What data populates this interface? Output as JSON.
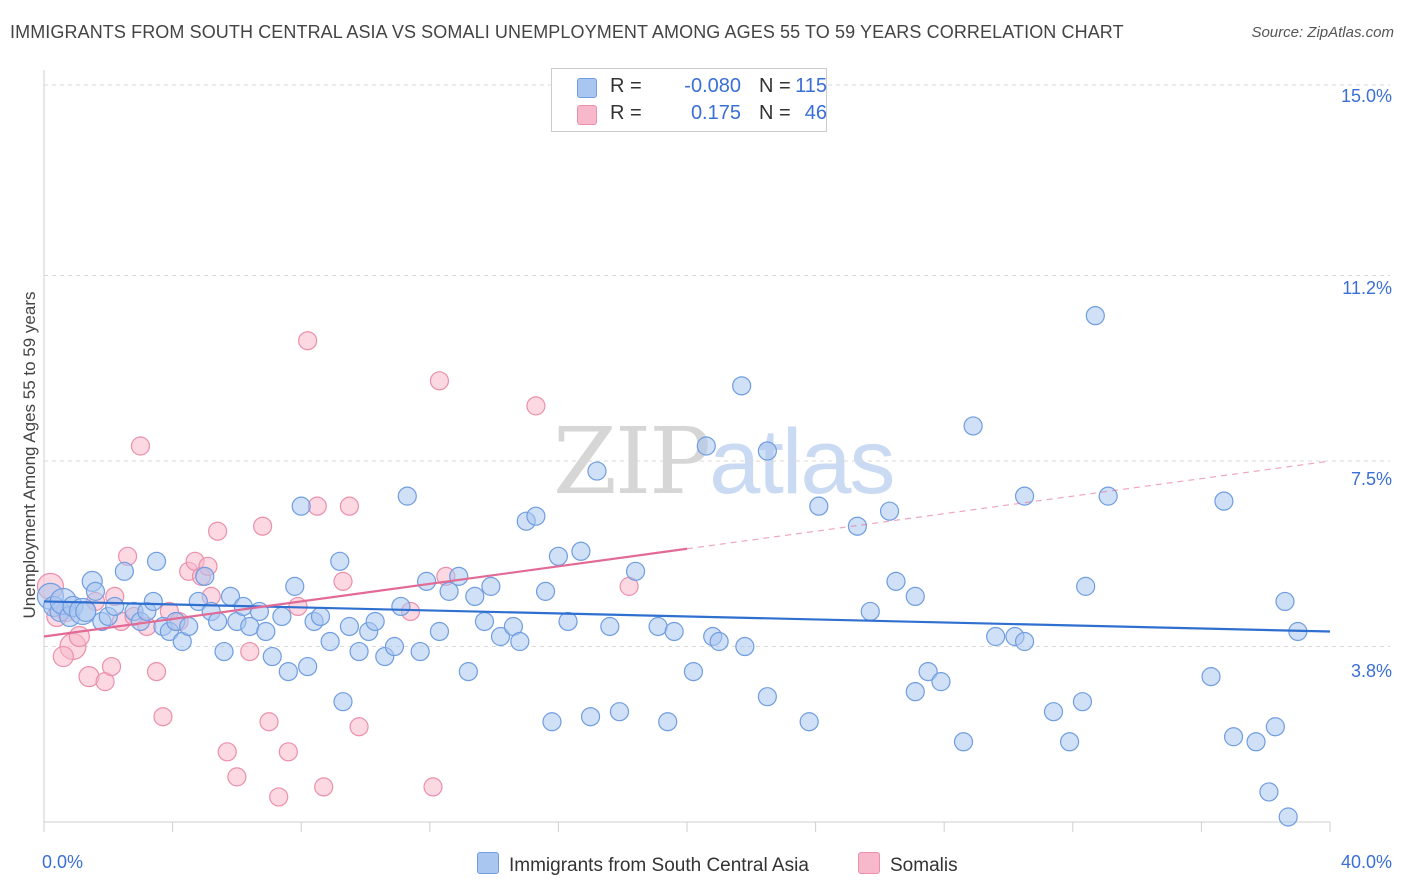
{
  "title": "IMMIGRANTS FROM SOUTH CENTRAL ASIA VS SOMALI UNEMPLOYMENT AMONG AGES 55 TO 59 YEARS CORRELATION CHART",
  "source": "Source: ZipAtlas.com",
  "watermark": {
    "zip": "ZIP",
    "atlas": "atlas"
  },
  "legend": {
    "rows": [
      {
        "r_label": "R =",
        "r_value": "-0.080",
        "n_label": "N =",
        "n_value": "115",
        "color": "#a9c6f0"
      },
      {
        "r_label": "R =",
        "r_value": "0.175",
        "n_label": "N =",
        "n_value": "46",
        "color": "#f7b8cb"
      }
    ]
  },
  "bottom_legend": [
    {
      "label": "Immigrants from South Central Asia",
      "color": "#a9c6f0"
    },
    {
      "label": "Somalis",
      "color": "#f7b8cb"
    }
  ],
  "axes": {
    "ylabel": "Unemployment Among Ages 55 to 59 years",
    "y_ticks": [
      "15.0%",
      "11.2%",
      "7.5%",
      "3.8%"
    ],
    "x_ticks": [
      "0.0%",
      "40.0%"
    ]
  },
  "colors": {
    "blue_fill": "#a9c6f0",
    "blue_stroke": "#6f9de0",
    "blue_line": "#2f6fd0",
    "pink_fill": "#f7b8cb",
    "pink_stroke": "#ec8fab",
    "pink_line": "#e26a96",
    "grid": "#d9d9d9",
    "accent_text": "#3a6fd6"
  },
  "chart_data": {
    "type": "scatter",
    "xlim": [
      0,
      40
    ],
    "ylim": [
      0.3,
      15.3
    ],
    "y_gridlines": [
      3.8,
      7.5,
      11.2,
      15.0
    ],
    "series": [
      {
        "name": "Immigrants from South Central Asia",
        "trend": {
          "x0": 0,
          "y0": 4.7,
          "x1": 40,
          "y1": 4.1,
          "dashed_from": null
        },
        "points": [
          [
            0.2,
            4.8
          ],
          [
            0.3,
            4.6
          ],
          [
            0.5,
            4.5
          ],
          [
            0.6,
            4.7
          ],
          [
            0.8,
            4.4
          ],
          [
            0.9,
            4.6
          ],
          [
            1.2,
            4.5
          ],
          [
            1.3,
            4.5
          ],
          [
            1.5,
            5.1
          ],
          [
            1.6,
            4.9
          ],
          [
            1.8,
            4.3
          ],
          [
            2.0,
            4.4
          ],
          [
            2.2,
            4.6
          ],
          [
            2.5,
            5.3
          ],
          [
            2.8,
            4.5
          ],
          [
            3.0,
            4.3
          ],
          [
            3.2,
            4.5
          ],
          [
            3.4,
            4.7
          ],
          [
            3.5,
            5.5
          ],
          [
            3.7,
            4.2
          ],
          [
            3.9,
            4.1
          ],
          [
            4.1,
            4.3
          ],
          [
            4.3,
            3.9
          ],
          [
            4.5,
            4.2
          ],
          [
            4.8,
            4.7
          ],
          [
            5.0,
            5.2
          ],
          [
            5.2,
            4.5
          ],
          [
            5.4,
            4.3
          ],
          [
            5.6,
            3.7
          ],
          [
            5.8,
            4.8
          ],
          [
            6.0,
            4.3
          ],
          [
            6.2,
            4.6
          ],
          [
            6.4,
            4.2
          ],
          [
            6.7,
            4.5
          ],
          [
            6.9,
            4.1
          ],
          [
            7.1,
            3.6
          ],
          [
            7.4,
            4.4
          ],
          [
            7.6,
            3.3
          ],
          [
            7.8,
            5.0
          ],
          [
            8.0,
            6.6
          ],
          [
            8.2,
            3.4
          ],
          [
            8.4,
            4.3
          ],
          [
            8.6,
            4.4
          ],
          [
            8.9,
            3.9
          ],
          [
            9.2,
            5.5
          ],
          [
            9.3,
            2.7
          ],
          [
            9.5,
            4.2
          ],
          [
            9.8,
            3.7
          ],
          [
            10.1,
            4.1
          ],
          [
            10.3,
            4.3
          ],
          [
            10.6,
            3.6
          ],
          [
            10.9,
            3.8
          ],
          [
            11.1,
            4.6
          ],
          [
            11.3,
            6.8
          ],
          [
            11.7,
            3.7
          ],
          [
            11.9,
            5.1
          ],
          [
            12.3,
            4.1
          ],
          [
            12.6,
            4.9
          ],
          [
            12.9,
            5.2
          ],
          [
            13.2,
            3.3
          ],
          [
            13.4,
            4.8
          ],
          [
            13.7,
            4.3
          ],
          [
            13.9,
            5.0
          ],
          [
            14.2,
            4.0
          ],
          [
            14.6,
            4.2
          ],
          [
            14.8,
            3.9
          ],
          [
            15.0,
            6.3
          ],
          [
            15.3,
            6.4
          ],
          [
            15.6,
            4.9
          ],
          [
            15.8,
            2.3
          ],
          [
            16.0,
            5.6
          ],
          [
            16.3,
            4.3
          ],
          [
            16.7,
            5.7
          ],
          [
            17.0,
            2.4
          ],
          [
            17.2,
            7.3
          ],
          [
            17.6,
            4.2
          ],
          [
            17.9,
            2.5
          ],
          [
            18.4,
            5.3
          ],
          [
            19.1,
            4.2
          ],
          [
            19.4,
            2.3
          ],
          [
            19.6,
            4.1
          ],
          [
            20.2,
            3.3
          ],
          [
            20.6,
            7.8
          ],
          [
            20.8,
            4.0
          ],
          [
            21.0,
            3.9
          ],
          [
            21.7,
            9.0
          ],
          [
            21.8,
            3.8
          ],
          [
            22.5,
            7.7
          ],
          [
            22.5,
            2.8
          ],
          [
            23.8,
            2.3
          ],
          [
            24.1,
            6.6
          ],
          [
            25.3,
            6.2
          ],
          [
            25.7,
            4.5
          ],
          [
            26.3,
            6.5
          ],
          [
            26.5,
            5.1
          ],
          [
            27.1,
            2.9
          ],
          [
            27.1,
            4.8
          ],
          [
            27.5,
            3.3
          ],
          [
            27.9,
            3.1
          ],
          [
            28.6,
            1.9
          ],
          [
            28.9,
            8.2
          ],
          [
            29.6,
            4.0
          ],
          [
            30.2,
            4.0
          ],
          [
            30.5,
            3.9
          ],
          [
            31.4,
            2.5
          ],
          [
            31.9,
            1.9
          ],
          [
            32.3,
            2.7
          ],
          [
            32.4,
            5.0
          ],
          [
            32.7,
            10.4
          ],
          [
            36.3,
            3.2
          ],
          [
            37.0,
            2.0
          ],
          [
            37.7,
            1.9
          ],
          [
            38.3,
            2.2
          ],
          [
            38.6,
            4.7
          ],
          [
            38.7,
            0.4
          ],
          [
            39.0,
            4.1
          ],
          [
            38.1,
            0.9
          ],
          [
            30.5,
            6.8
          ],
          [
            33.1,
            6.8
          ],
          [
            36.7,
            6.7
          ]
        ]
      },
      {
        "name": "Somalis",
        "trend": {
          "x0": 0,
          "y0": 4.0,
          "x1": 40,
          "y1": 7.5,
          "dashed_from": 20
        },
        "points": [
          [
            0.2,
            5.0
          ],
          [
            0.4,
            4.4
          ],
          [
            0.7,
            4.5
          ],
          [
            0.9,
            3.8
          ],
          [
            1.1,
            4.0
          ],
          [
            1.4,
            3.2
          ],
          [
            1.6,
            4.7
          ],
          [
            1.9,
            3.1
          ],
          [
            2.1,
            3.4
          ],
          [
            2.4,
            4.3
          ],
          [
            2.6,
            5.6
          ],
          [
            2.8,
            4.4
          ],
          [
            3.0,
            7.8
          ],
          [
            3.2,
            4.2
          ],
          [
            3.5,
            3.3
          ],
          [
            3.7,
            2.4
          ],
          [
            3.9,
            4.5
          ],
          [
            4.2,
            4.3
          ],
          [
            4.5,
            5.3
          ],
          [
            4.7,
            5.5
          ],
          [
            4.9,
            5.2
          ],
          [
            5.2,
            4.8
          ],
          [
            5.4,
            6.1
          ],
          [
            5.7,
            1.7
          ],
          [
            6.0,
            1.2
          ],
          [
            6.4,
            3.7
          ],
          [
            6.8,
            6.2
          ],
          [
            7.0,
            2.3
          ],
          [
            7.3,
            0.8
          ],
          [
            7.6,
            1.7
          ],
          [
            7.9,
            4.6
          ],
          [
            8.2,
            9.9
          ],
          [
            8.5,
            6.6
          ],
          [
            8.7,
            1.0
          ],
          [
            9.3,
            5.1
          ],
          [
            9.5,
            6.6
          ],
          [
            9.8,
            2.2
          ],
          [
            11.4,
            4.5
          ],
          [
            12.3,
            9.1
          ],
          [
            12.5,
            5.2
          ],
          [
            12.1,
            1.0
          ],
          [
            15.3,
            8.6
          ],
          [
            18.2,
            5.0
          ],
          [
            5.1,
            5.4
          ],
          [
            0.6,
            3.6
          ],
          [
            2.2,
            4.8
          ]
        ]
      }
    ]
  }
}
